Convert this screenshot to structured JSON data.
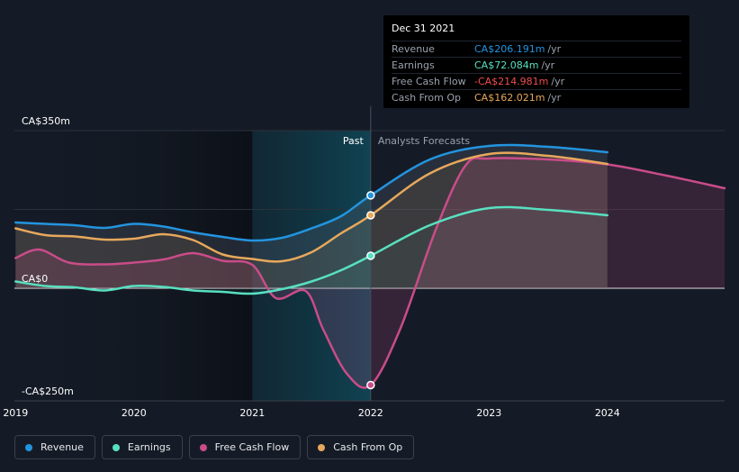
{
  "chart_data": {
    "type": "line",
    "title": "",
    "x_start": 2018.99,
    "x_end": 2024.99,
    "ylim": [
      -250,
      350
    ],
    "y_axis_labels": [
      {
        "value": 350,
        "text": "CA$350m"
      },
      {
        "value": 0,
        "text": "CA$0"
      },
      {
        "value": -250,
        "text": "-CA$250m"
      }
    ],
    "x_ticks": [
      {
        "value": 2019,
        "text": "2019"
      },
      {
        "value": 2020,
        "text": "2020"
      },
      {
        "value": 2021,
        "text": "2021"
      },
      {
        "value": 2022,
        "text": "2022"
      },
      {
        "value": 2023,
        "text": "2023"
      },
      {
        "value": 2024,
        "text": "2024"
      }
    ],
    "divider_x": 2022,
    "highlight_start": 2021,
    "past_label": "Past",
    "forecast_label": "Analysts Forecasts",
    "series": [
      {
        "name": "Revenue",
        "color": "#2394df",
        "points": [
          [
            2019,
            146
          ],
          [
            2019.25,
            143
          ],
          [
            2019.5,
            140
          ],
          [
            2019.75,
            134
          ],
          [
            2020,
            143
          ],
          [
            2020.25,
            137
          ],
          [
            2020.5,
            124
          ],
          [
            2020.75,
            114
          ],
          [
            2021,
            106
          ],
          [
            2021.25,
            112
          ],
          [
            2021.5,
            133
          ],
          [
            2021.75,
            160
          ],
          [
            2022,
            206.2
          ],
          [
            2022.5,
            286
          ],
          [
            2023,
            316
          ],
          [
            2023.5,
            314
          ],
          [
            2024,
            302
          ]
        ]
      },
      {
        "name": "Earnings",
        "color": "#58e0c0",
        "points": [
          [
            2019,
            15
          ],
          [
            2019.25,
            5
          ],
          [
            2019.5,
            2
          ],
          [
            2019.75,
            -5
          ],
          [
            2020,
            5
          ],
          [
            2020.25,
            3
          ],
          [
            2020.5,
            -5
          ],
          [
            2020.75,
            -8
          ],
          [
            2021,
            -12
          ],
          [
            2021.25,
            -2
          ],
          [
            2021.5,
            15
          ],
          [
            2021.75,
            40
          ],
          [
            2022,
            72.1
          ],
          [
            2022.5,
            140
          ],
          [
            2023,
            178
          ],
          [
            2023.5,
            174
          ],
          [
            2024,
            162
          ]
        ]
      },
      {
        "name": "Free Cash Flow",
        "color": "#c94c89",
        "points": [
          [
            2019,
            67
          ],
          [
            2019.2,
            86
          ],
          [
            2019.45,
            57
          ],
          [
            2019.75,
            53
          ],
          [
            2020,
            57
          ],
          [
            2020.25,
            64
          ],
          [
            2020.5,
            78
          ],
          [
            2020.75,
            61
          ],
          [
            2021,
            52
          ],
          [
            2021.2,
            -22
          ],
          [
            2021.45,
            -6
          ],
          [
            2021.6,
            -92
          ],
          [
            2021.8,
            -190
          ],
          [
            2022,
            -215
          ],
          [
            2022.25,
            -90
          ],
          [
            2022.55,
            130
          ],
          [
            2022.8,
            272
          ],
          [
            2023,
            288
          ],
          [
            2023.5,
            286
          ],
          [
            2024,
            275
          ],
          [
            2024.5,
            250
          ],
          [
            2024.99,
            222
          ]
        ]
      },
      {
        "name": "Cash From Op",
        "color": "#e7a85c",
        "points": [
          [
            2019,
            133
          ],
          [
            2019.25,
            118
          ],
          [
            2019.5,
            115
          ],
          [
            2019.75,
            108
          ],
          [
            2020,
            110
          ],
          [
            2020.25,
            120
          ],
          [
            2020.5,
            107
          ],
          [
            2020.75,
            75
          ],
          [
            2021,
            65
          ],
          [
            2021.25,
            60
          ],
          [
            2021.5,
            80
          ],
          [
            2021.75,
            122
          ],
          [
            2022,
            162
          ],
          [
            2022.5,
            255
          ],
          [
            2023,
            298
          ],
          [
            2023.5,
            294
          ],
          [
            2024,
            276
          ]
        ]
      }
    ],
    "tooltip": {
      "date": "Dec 31 2021",
      "rows": [
        {
          "label": "Revenue",
          "value": "CA$206.191m",
          "unit": "/yr",
          "color": "#2394df"
        },
        {
          "label": "Earnings",
          "value": "CA$72.084m",
          "unit": "/yr",
          "color": "#58e0c0"
        },
        {
          "label": "Free Cash Flow",
          "value": "-CA$214.981m",
          "unit": "/yr",
          "color": "#ee4e4e"
        },
        {
          "label": "Cash From Op",
          "value": "CA$162.021m",
          "unit": "/yr",
          "color": "#e7a85c"
        }
      ]
    },
    "legend": [
      {
        "label": "Revenue",
        "color": "#2394df"
      },
      {
        "label": "Earnings",
        "color": "#58e0c0"
      },
      {
        "label": "Free Cash Flow",
        "color": "#c94c89"
      },
      {
        "label": "Cash From Op",
        "color": "#e7a85c"
      }
    ]
  }
}
